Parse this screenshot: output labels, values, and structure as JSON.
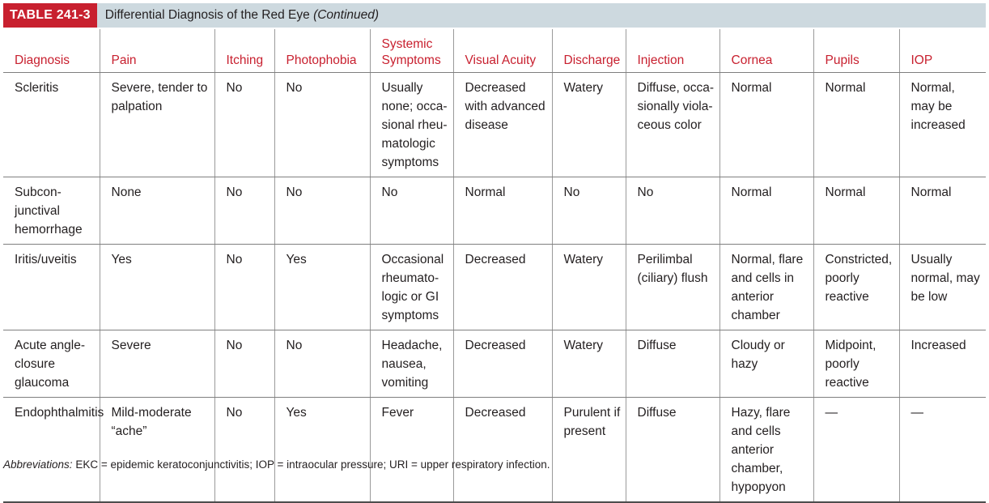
{
  "header": {
    "table_number": "TABLE 241-3",
    "title": "Differential Diagnosis of the Red Eye",
    "title_suffix": "(Continued)"
  },
  "columns": [
    "Diagnosis",
    "Pain",
    "Itching",
    "Photophobia",
    "Systemic Symptoms",
    "Visual Acuity",
    "Discharge",
    "Injection",
    "Cornea",
    "Pupils",
    "IOP"
  ],
  "rows": [
    [
      "Scleritis",
      "Severe, tender to palpation",
      "No",
      "No",
      "Usually none; occa-sional rheu-matologic symptoms",
      "Decreased with advanced disease",
      "Watery",
      "Diffuse, occa-sionally viola-ceous color",
      "Normal",
      "Normal",
      "Normal, may be increased"
    ],
    [
      "Subcon-junctival hemorrhage",
      "None",
      "No",
      "No",
      "No",
      "Normal",
      "No",
      "No",
      "Normal",
      "Normal",
      "Normal"
    ],
    [
      "Iritis/uveitis",
      "Yes",
      "No",
      "Yes",
      "Occasional rheumato-logic or GI symptoms",
      "Decreased",
      "Watery",
      "Perilimbal (ciliary) flush",
      "Normal, flare and cells in anterior chamber",
      "Constricted, poorly reactive",
      "Usually normal, may be low"
    ],
    [
      "Acute angle-closure glaucoma",
      "Severe",
      "No",
      "No",
      "Headache, nausea, vomiting",
      "Decreased",
      "Watery",
      "Diffuse",
      "Cloudy or hazy",
      "Midpoint, poorly reactive",
      "Increased"
    ],
    [
      "Endophthalmitis",
      "Mild-moderate “ache”",
      "No",
      "Yes",
      "Fever",
      "Decreased",
      "Purulent if present",
      "Diffuse",
      "Hazy, flare and cells anterior chamber, hypopyon",
      "—",
      "—"
    ]
  ],
  "footnote": {
    "label": "Abbreviations:",
    "text": " EKC = epidemic keratoconjunctivitis; IOP = intraocular pressure; URI = upper respiratory infection."
  }
}
